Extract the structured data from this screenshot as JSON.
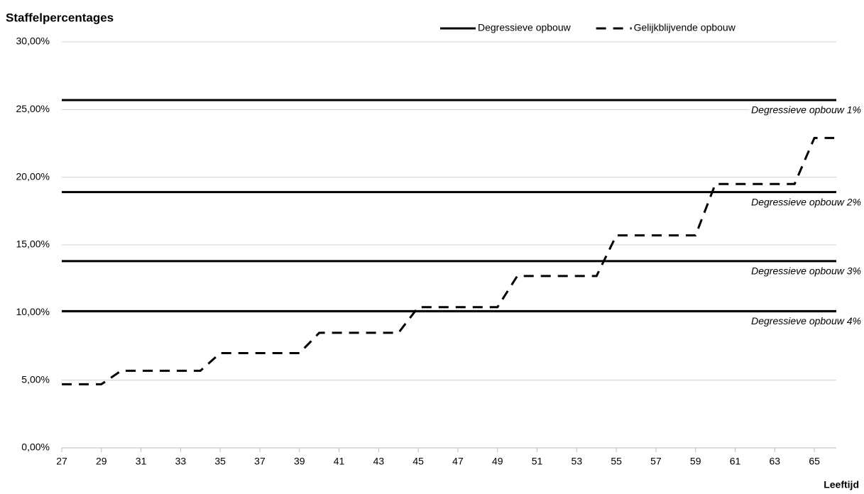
{
  "chart_data": {
    "type": "line",
    "title": "Staffelpercentages",
    "x_label": "Leeftijd",
    "x": [
      27,
      28,
      29,
      30,
      31,
      32,
      33,
      34,
      35,
      36,
      37,
      38,
      39,
      40,
      41,
      42,
      43,
      44,
      45,
      46,
      47,
      48,
      49,
      50,
      51,
      52,
      53,
      54,
      55,
      56,
      57,
      58,
      59,
      60,
      61,
      62,
      63,
      64,
      65,
      66
    ],
    "series": [
      {
        "name": "Degressieve opbouw",
        "color": "#000000",
        "style": "solid",
        "levels": [
          25.7,
          18.9,
          13.8,
          10.1
        ],
        "level_labels": [
          "Degressieve opbouw 1%",
          "Degressieve opbouw 2%",
          "Degressieve opbouw 3%",
          "Degressieve opbouw 4%"
        ]
      },
      {
        "name": "Gelijkblijvende opbouw",
        "color": "#000000",
        "style": "dashed",
        "values": [
          4.7,
          4.7,
          4.7,
          5.7,
          5.7,
          5.7,
          5.7,
          5.7,
          7.0,
          7.0,
          7.0,
          7.0,
          7.0,
          8.5,
          8.5,
          8.5,
          8.5,
          8.5,
          10.4,
          10.4,
          10.4,
          10.4,
          10.4,
          12.7,
          12.7,
          12.7,
          12.7,
          12.7,
          15.7,
          15.7,
          15.7,
          15.7,
          15.7,
          19.5,
          19.5,
          19.5,
          19.5,
          19.5,
          22.9,
          22.9
        ]
      }
    ],
    "xlim": [
      27,
      66
    ],
    "xticks": [
      27,
      29,
      31,
      33,
      35,
      37,
      39,
      41,
      43,
      45,
      47,
      49,
      51,
      53,
      55,
      57,
      59,
      61,
      63,
      65
    ],
    "ylim": [
      0,
      30
    ],
    "yticks": [
      {
        "value": 0,
        "label": "0,00%"
      },
      {
        "value": 5,
        "label": "5,00%"
      },
      {
        "value": 10,
        "label": "10,00%"
      },
      {
        "value": 15,
        "label": "15,00%"
      },
      {
        "value": 20,
        "label": "20,00%"
      },
      {
        "value": 25,
        "label": "25,00%"
      },
      {
        "value": 30,
        "label": "30,00%"
      }
    ],
    "grid": true,
    "legend": "top"
  }
}
